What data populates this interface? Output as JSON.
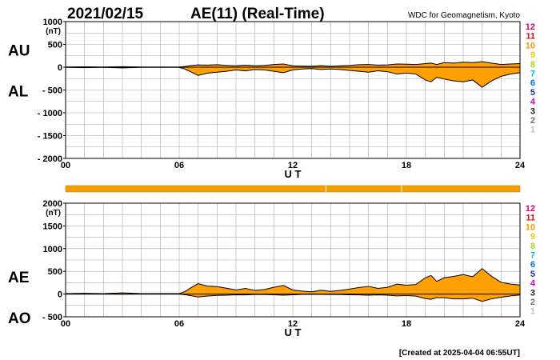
{
  "header": {
    "date": "2021/02/15",
    "title": "AE(11) (Real-Time)",
    "source": "WDC for Geomagnetism, Kyoto"
  },
  "footer": {
    "created": "[Created at 2025-04-04 06:55UT]"
  },
  "colors": {
    "fill": "#ffa000",
    "grid": "#aaaaaa",
    "axis": "#000000",
    "status_bar": "#f5a000"
  },
  "legend": {
    "entries": [
      {
        "label": "12",
        "color": "#e8006a"
      },
      {
        "label": "11",
        "color": "#e01010"
      },
      {
        "label": "10",
        "color": "#ff9a00"
      },
      {
        "label": "9",
        "color": "#e6d400"
      },
      {
        "label": "8",
        "color": "#a8e000"
      },
      {
        "label": "7",
        "color": "#00c8d8"
      },
      {
        "label": "6",
        "color": "#0070ff"
      },
      {
        "label": "5",
        "color": "#2828c0"
      },
      {
        "label": "4",
        "color": "#d000d0"
      },
      {
        "label": "3",
        "color": "#202020"
      },
      {
        "label": "2",
        "color": "#707070"
      },
      {
        "label": "1",
        "color": "#c0c0c0"
      }
    ]
  },
  "status_bar": {
    "hours_shown": [
      0,
      24
    ],
    "breaks_at_hours": [
      13.75,
      17.75
    ]
  },
  "chart_data": [
    {
      "type": "area",
      "series": [
        {
          "name": "AU",
          "x": [
            0,
            1,
            2,
            3,
            4,
            5,
            6,
            6.3,
            6.6,
            7,
            7.5,
            8,
            8.5,
            9,
            9.5,
            10,
            10.5,
            11,
            11.5,
            12,
            12.5,
            13,
            13.5,
            14,
            14.5,
            15,
            15.5,
            16,
            16.5,
            17,
            17.5,
            18,
            18.5,
            19,
            19.3,
            19.6,
            20,
            20.5,
            21,
            21.5,
            22,
            22.5,
            23,
            23.5,
            24
          ],
          "values": [
            5,
            8,
            5,
            10,
            5,
            5,
            5,
            15,
            35,
            50,
            45,
            55,
            40,
            30,
            45,
            30,
            40,
            60,
            70,
            30,
            25,
            20,
            35,
            20,
            30,
            40,
            55,
            60,
            45,
            50,
            70,
            65,
            60,
            80,
            90,
            60,
            100,
            90,
            110,
            100,
            120,
            90,
            60,
            70,
            80
          ]
        },
        {
          "name": "AL",
          "x": [
            0,
            1,
            2,
            3,
            4,
            5,
            6,
            6.3,
            6.6,
            7,
            7.5,
            8,
            8.5,
            9,
            9.5,
            10,
            10.5,
            11,
            11.5,
            12,
            12.5,
            13,
            13.5,
            14,
            14.5,
            15,
            15.5,
            16,
            16.5,
            17,
            17.5,
            18,
            18.5,
            19,
            19.3,
            19.6,
            20,
            20.5,
            21,
            21.5,
            22,
            22.5,
            23,
            23.5,
            24
          ],
          "values": [
            -5,
            -10,
            -5,
            -15,
            -5,
            -5,
            -5,
            -40,
            -100,
            -180,
            -130,
            -110,
            -90,
            -60,
            -80,
            -50,
            -60,
            -90,
            -120,
            -60,
            -40,
            -30,
            -50,
            -40,
            -50,
            -70,
            -90,
            -110,
            -80,
            -100,
            -150,
            -130,
            -150,
            -280,
            -320,
            -220,
            -260,
            -300,
            -320,
            -280,
            -440,
            -300,
            -200,
            -150,
            -120
          ]
        }
      ],
      "xlabel": "U T",
      "ylabel_top": "AU",
      "ylabel_bottom": "AL",
      "unit": "(nT)",
      "x_ticks": [
        "00",
        "06",
        "12",
        "18",
        "24"
      ],
      "y_ticks": [
        "1000",
        "500",
        "0",
        "- 500",
        "- 1000",
        "- 1500",
        "- 2000"
      ],
      "xlim": [
        0,
        24
      ],
      "ylim": [
        -2000,
        1000
      ],
      "grid": true
    },
    {
      "type": "area",
      "series": [
        {
          "name": "AE",
          "x": [
            0,
            1,
            2,
            3,
            4,
            5,
            6,
            6.3,
            6.6,
            7,
            7.5,
            8,
            8.5,
            9,
            9.5,
            10,
            10.5,
            11,
            11.5,
            12,
            12.5,
            13,
            13.5,
            14,
            14.5,
            15,
            15.5,
            16,
            16.5,
            17,
            17.5,
            18,
            18.5,
            19,
            19.3,
            19.6,
            20,
            20.5,
            21,
            21.5,
            22,
            22.5,
            23,
            23.5,
            24
          ],
          "values": [
            10,
            18,
            10,
            25,
            10,
            10,
            10,
            55,
            135,
            230,
            175,
            165,
            130,
            90,
            125,
            80,
            100,
            150,
            190,
            90,
            65,
            50,
            85,
            60,
            80,
            110,
            145,
            170,
            125,
            150,
            220,
            195,
            210,
            360,
            410,
            280,
            360,
            390,
            430,
            380,
            560,
            390,
            260,
            220,
            200
          ]
        },
        {
          "name": "AO",
          "x": [
            0,
            1,
            2,
            3,
            4,
            5,
            6,
            6.3,
            6.6,
            7,
            7.5,
            8,
            8.5,
            9,
            9.5,
            10,
            10.5,
            11,
            11.5,
            12,
            12.5,
            13,
            13.5,
            14,
            14.5,
            15,
            15.5,
            16,
            16.5,
            17,
            17.5,
            18,
            18.5,
            19,
            19.3,
            19.6,
            20,
            20.5,
            21,
            21.5,
            22,
            22.5,
            23,
            23.5,
            24
          ],
          "values": [
            0,
            -1,
            0,
            -3,
            0,
            0,
            0,
            -13,
            -33,
            -65,
            -43,
            -28,
            -25,
            -15,
            -18,
            -10,
            -10,
            -15,
            -25,
            -15,
            -8,
            -5,
            -8,
            -10,
            -10,
            -15,
            -18,
            -25,
            -18,
            -25,
            -40,
            -33,
            -45,
            -100,
            -115,
            -80,
            -80,
            -105,
            -105,
            -90,
            -160,
            -105,
            -70,
            -40,
            -20
          ]
        }
      ],
      "xlabel": "U T",
      "ylabel_top": "AE",
      "ylabel_bottom": "AO",
      "unit": "(nT)",
      "x_ticks": [
        "00",
        "06",
        "12",
        "18",
        "24"
      ],
      "y_ticks": [
        "2000",
        "1500",
        "1000",
        "500",
        "0",
        "- 500"
      ],
      "xlim": [
        0,
        24
      ],
      "ylim": [
        -500,
        2000
      ],
      "grid": true
    }
  ]
}
